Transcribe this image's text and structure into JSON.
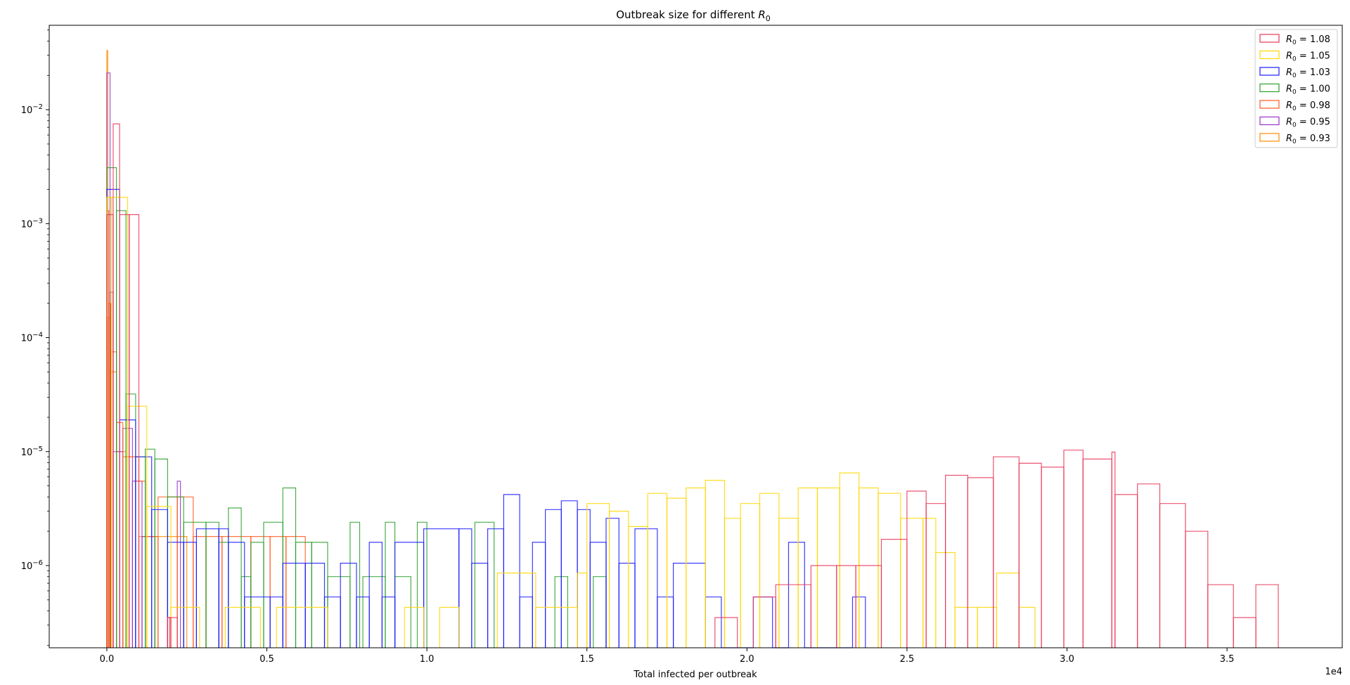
{
  "chart_data": {
    "type": "histogram-step",
    "title": "Outbreak size for different R0",
    "title_prefix": "Outbreak size for different ",
    "title_math": "R",
    "title_sub": "0",
    "xlabel": "Total infected per outbreak",
    "ylabel": "",
    "x_scale_label": "1e4",
    "x_multiplier": 10000,
    "xlim": [
      -1800,
      38600
    ],
    "ylim": [
      1.9e-07,
      0.055
    ],
    "y_scale": "log",
    "x_ticks": [
      0,
      5000,
      10000,
      15000,
      20000,
      25000,
      30000,
      35000
    ],
    "x_tick_labels": [
      "0.0",
      "0.5",
      "1.0",
      "1.5",
      "2.0",
      "2.5",
      "3.0",
      "3.5"
    ],
    "y_ticks": [
      1e-06,
      1e-05,
      0.0001,
      0.001,
      0.01
    ],
    "y_tick_base": "10",
    "y_tick_exps": [
      "−6",
      "−5",
      "−4",
      "−3",
      "−2"
    ],
    "grid": false,
    "legend_position": "top-right",
    "series": [
      {
        "name": "R0 = 1.08",
        "value_label": " = 1.08",
        "color": "#e8375a",
        "steps": [
          [
            0,
            200,
            0.0012
          ],
          [
            200,
            400,
            0.0075
          ],
          [
            400,
            700,
            0.0012
          ],
          [
            700,
            1000,
            0.0012
          ],
          [
            1900,
            2000,
            3.5e-07
          ],
          [
            2000,
            2200,
            3.5e-07
          ],
          [
            1900,
            1960,
            3.5e-07
          ],
          [
            19000,
            19700,
            3.5e-07
          ],
          [
            20200,
            20900,
            5.3e-07
          ],
          [
            20900,
            22000,
            6.8e-07
          ],
          [
            22000,
            22800,
            1e-06
          ],
          [
            22800,
            23400,
            1e-06
          ],
          [
            23400,
            24200,
            1e-06
          ],
          [
            24200,
            25000,
            1.7e-06
          ],
          [
            25000,
            25600,
            4.5e-06
          ],
          [
            25600,
            26200,
            3.5e-06
          ],
          [
            26200,
            26900,
            6.2e-06
          ],
          [
            26900,
            27700,
            5.9e-06
          ],
          [
            27700,
            28500,
            9e-06
          ],
          [
            28500,
            29200,
            7.9e-06
          ],
          [
            29200,
            29900,
            7.3e-06
          ],
          [
            29900,
            30500,
            1.03e-05
          ],
          [
            30500,
            31400,
            8.6e-06
          ],
          [
            31400,
            31500,
            9.9e-06
          ],
          [
            31500,
            32200,
            4.2e-06
          ],
          [
            32200,
            32900,
            5.2e-06
          ],
          [
            32900,
            33700,
            3.5e-06
          ],
          [
            33700,
            34400,
            2e-06
          ],
          [
            34400,
            35200,
            6.8e-07
          ],
          [
            35200,
            35900,
            3.5e-07
          ],
          [
            35900,
            36600,
            6.8e-07
          ]
        ]
      },
      {
        "name": "R0 = 1.05",
        "value_label": " = 1.05",
        "color": "#ffd700",
        "steps": [
          [
            0,
            150,
            0.0017
          ],
          [
            150,
            650,
            0.0017
          ],
          [
            650,
            1250,
            2.5e-05
          ],
          [
            1250,
            2000,
            3.3e-06
          ],
          [
            2000,
            2900,
            4.3e-07
          ],
          [
            3700,
            4800,
            4.3e-07
          ],
          [
            5300,
            6900,
            4.3e-07
          ],
          [
            9300,
            9900,
            4.3e-07
          ],
          [
            10400,
            11000,
            4.3e-07
          ],
          [
            12200,
            13400,
            8.6e-07
          ],
          [
            13400,
            14700,
            4.3e-07
          ],
          [
            14700,
            15000,
            8.6e-07
          ],
          [
            15000,
            15700,
            3.5e-06
          ],
          [
            15700,
            16300,
            3e-06
          ],
          [
            16300,
            16900,
            2.2e-06
          ],
          [
            16900,
            17500,
            4.3e-06
          ],
          [
            17500,
            18100,
            3.9e-06
          ],
          [
            18100,
            18700,
            4.8e-06
          ],
          [
            18700,
            19300,
            5.6e-06
          ],
          [
            19300,
            19800,
            2.6e-06
          ],
          [
            19800,
            20400,
            3.5e-06
          ],
          [
            20400,
            21000,
            4.3e-06
          ],
          [
            21000,
            21600,
            2.6e-06
          ],
          [
            21600,
            22200,
            4.8e-06
          ],
          [
            22200,
            22900,
            4.8e-06
          ],
          [
            22900,
            23500,
            6.5e-06
          ],
          [
            23500,
            24100,
            4.8e-06
          ],
          [
            24100,
            24800,
            4.3e-06
          ],
          [
            24800,
            25500,
            2.6e-06
          ],
          [
            25500,
            25900,
            2.6e-06
          ],
          [
            25900,
            26500,
            1.3e-06
          ],
          [
            26500,
            27200,
            4.3e-07
          ],
          [
            27200,
            27800,
            4.3e-07
          ],
          [
            27800,
            28500,
            8.6e-07
          ],
          [
            28500,
            29000,
            4.3e-07
          ]
        ]
      },
      {
        "name": "R0 = 1.03",
        "value_label": " = 1.03",
        "color": "#1a1aff",
        "steps": [
          [
            0,
            400,
            0.002
          ],
          [
            400,
            900,
            1.9e-05
          ],
          [
            900,
            1400,
            9e-06
          ],
          [
            1400,
            1900,
            3.1e-06
          ],
          [
            1900,
            2400,
            1.6e-06
          ],
          [
            2400,
            2800,
            1.6e-06
          ],
          [
            2800,
            3500,
            2.1e-06
          ],
          [
            3500,
            3800,
            2.1e-06
          ],
          [
            3800,
            4300,
            1.6e-06
          ],
          [
            4300,
            5100,
            5.3e-07
          ],
          [
            5100,
            5500,
            5.3e-07
          ],
          [
            5500,
            6200,
            1.05e-06
          ],
          [
            6200,
            6800,
            1.05e-06
          ],
          [
            6800,
            7300,
            5.3e-07
          ],
          [
            7300,
            7800,
            1.05e-06
          ],
          [
            7800,
            8200,
            5.3e-07
          ],
          [
            8200,
            8600,
            1.6e-06
          ],
          [
            8600,
            9000,
            5.3e-07
          ],
          [
            9000,
            9900,
            1.6e-06
          ],
          [
            9900,
            11000,
            2.1e-06
          ],
          [
            11000,
            11400,
            2.1e-06
          ],
          [
            11400,
            11900,
            1.05e-06
          ],
          [
            11900,
            12400,
            2.1e-06
          ],
          [
            12400,
            12900,
            4.2e-06
          ],
          [
            12900,
            13300,
            5.3e-07
          ],
          [
            13300,
            13700,
            1.6e-06
          ],
          [
            13700,
            14200,
            3.1e-06
          ],
          [
            14200,
            14700,
            3.7e-06
          ],
          [
            14700,
            15100,
            3.1e-06
          ],
          [
            15100,
            15600,
            1.6e-06
          ],
          [
            15600,
            16000,
            2.6e-06
          ],
          [
            16000,
            16500,
            1.05e-06
          ],
          [
            16500,
            17200,
            2.1e-06
          ],
          [
            17200,
            17700,
            5.3e-07
          ],
          [
            17700,
            18700,
            1.05e-06
          ],
          [
            18700,
            19200,
            5.3e-07
          ],
          [
            19200,
            20200,
            1.9e-07
          ],
          [
            20200,
            20800,
            5.3e-07
          ],
          [
            20800,
            21300,
            1.9e-07
          ],
          [
            21300,
            21800,
            1.6e-06
          ],
          [
            21800,
            23300,
            1.9e-07
          ],
          [
            23300,
            23700,
            5.3e-07
          ]
        ]
      },
      {
        "name": "R0 = 1.00",
        "value_label": " = 1.00",
        "color": "#2ca02c",
        "steps": [
          [
            0,
            300,
            0.0031
          ],
          [
            300,
            600,
            0.0013
          ],
          [
            600,
            900,
            3.2e-05
          ],
          [
            900,
            1200,
            9e-06
          ],
          [
            1200,
            1500,
            1.05e-05
          ],
          [
            1500,
            1900,
            8.6e-06
          ],
          [
            1900,
            2400,
            4e-06
          ],
          [
            2400,
            3100,
            2.4e-06
          ],
          [
            3100,
            3500,
            2.4e-06
          ],
          [
            3500,
            3800,
            1.6e-06
          ],
          [
            3800,
            4200,
            3.2e-06
          ],
          [
            4200,
            4500,
            8e-07
          ],
          [
            4500,
            4900,
            1.6e-06
          ],
          [
            4900,
            5500,
            2.4e-06
          ],
          [
            5500,
            5900,
            4.8e-06
          ],
          [
            5900,
            6400,
            1.6e-06
          ],
          [
            6400,
            6900,
            1.6e-06
          ],
          [
            6900,
            7600,
            8e-07
          ],
          [
            7600,
            7900,
            2.4e-06
          ],
          [
            8000,
            8700,
            8e-07
          ],
          [
            8700,
            9000,
            2.4e-06
          ],
          [
            9000,
            9500,
            8e-07
          ],
          [
            9700,
            10000,
            2.4e-06
          ],
          [
            11500,
            12100,
            2.4e-06
          ],
          [
            14000,
            14400,
            8e-07
          ],
          [
            15200,
            15600,
            8e-07
          ]
        ]
      },
      {
        "name": "R0 = 0.98",
        "value_label": " = 0.98",
        "color": "#ff5a1f",
        "steps": [
          [
            0,
            60,
            0.0013
          ],
          [
            60,
            120,
            0.0002
          ],
          [
            120,
            300,
            7.5e-05
          ],
          [
            300,
            500,
            1.8e-05
          ],
          [
            500,
            900,
            9e-06
          ],
          [
            900,
            1200,
            5.5e-06
          ],
          [
            1200,
            1600,
            1.8e-06
          ],
          [
            1600,
            2200,
            4e-06
          ],
          [
            2200,
            2700,
            4e-06
          ],
          [
            2700,
            3100,
            1.8e-06
          ],
          [
            3100,
            3600,
            1.8e-06
          ],
          [
            3600,
            4500,
            1.8e-06
          ],
          [
            4500,
            5100,
            1.8e-06
          ],
          [
            5100,
            5600,
            1.8e-06
          ],
          [
            5600,
            6200,
            1.8e-06
          ]
        ]
      },
      {
        "name": "R0 = 0.95",
        "value_label": " = 0.95",
        "color": "#9933cc",
        "steps": [
          [
            0,
            100,
            0.021
          ],
          [
            100,
            200,
            0.00025
          ],
          [
            200,
            500,
            1e-05
          ],
          [
            500,
            800,
            1.6e-05
          ],
          [
            800,
            1100,
            5.5e-06
          ],
          [
            1100,
            1500,
            1.8e-06
          ],
          [
            2200,
            2300,
            5.5e-06
          ]
        ]
      },
      {
        "name": "R0 = 0.93",
        "value_label": " = 0.93",
        "color": "#ff8c00",
        "steps": [
          [
            0,
            30,
            0.033
          ],
          [
            30,
            100,
            0.00015
          ],
          [
            100,
            300,
            5e-05
          ],
          [
            300,
            600,
            1e-05
          ],
          [
            600,
            1000,
            9e-06
          ],
          [
            1000,
            1500,
            1.8e-06
          ],
          [
            1500,
            2500,
            1.8e-06
          ]
        ]
      }
    ]
  }
}
